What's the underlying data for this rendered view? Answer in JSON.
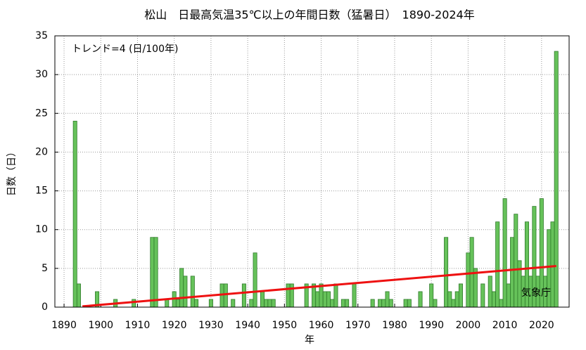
{
  "chart_data": {
    "type": "bar",
    "title": "松山　日最高気温35℃以上の年間日数（猛暑日）　1890-2024年",
    "xlabel": "年",
    "ylabel": "日数（日）",
    "annotations": [
      "トレンド=4 (日/100年)",
      "気象庁"
    ],
    "x": [
      1890,
      1891,
      1892,
      1893,
      1894,
      1895,
      1896,
      1897,
      1898,
      1899,
      1900,
      1901,
      1902,
      1903,
      1904,
      1905,
      1906,
      1907,
      1908,
      1909,
      1910,
      1911,
      1912,
      1913,
      1914,
      1915,
      1916,
      1917,
      1918,
      1919,
      1920,
      1921,
      1922,
      1923,
      1924,
      1925,
      1926,
      1927,
      1928,
      1929,
      1930,
      1931,
      1932,
      1933,
      1934,
      1935,
      1936,
      1937,
      1938,
      1939,
      1940,
      1941,
      1942,
      1943,
      1944,
      1945,
      1946,
      1947,
      1948,
      1949,
      1950,
      1951,
      1952,
      1953,
      1954,
      1955,
      1956,
      1957,
      1958,
      1959,
      1960,
      1961,
      1962,
      1963,
      1964,
      1965,
      1966,
      1967,
      1968,
      1969,
      1970,
      1971,
      1972,
      1973,
      1974,
      1975,
      1976,
      1977,
      1978,
      1979,
      1980,
      1981,
      1982,
      1983,
      1984,
      1985,
      1986,
      1987,
      1988,
      1989,
      1990,
      1991,
      1992,
      1993,
      1994,
      1995,
      1996,
      1997,
      1998,
      1999,
      2000,
      2001,
      2002,
      2003,
      2004,
      2005,
      2006,
      2007,
      2008,
      2009,
      2010,
      2011,
      2012,
      2013,
      2014,
      2015,
      2016,
      2017,
      2018,
      2019,
      2020,
      2021,
      2022,
      2023,
      2024
    ],
    "values": [
      0,
      0,
      0,
      24,
      3,
      0,
      0,
      0,
      0,
      2,
      0,
      0,
      0,
      0,
      1,
      0,
      0,
      0,
      0,
      1,
      0,
      0,
      0,
      0,
      9,
      9,
      0,
      0,
      1,
      0,
      2,
      1,
      5,
      4,
      0,
      4,
      1,
      0,
      0,
      0,
      1,
      0,
      0,
      3,
      3,
      0,
      1,
      0,
      0,
      3,
      0,
      1,
      7,
      0,
      2,
      1,
      1,
      1,
      0,
      0,
      0,
      3,
      3,
      0,
      0,
      0,
      3,
      0,
      3,
      2,
      3,
      2,
      2,
      1,
      3,
      0,
      1,
      1,
      0,
      3,
      0,
      0,
      0,
      0,
      1,
      0,
      1,
      1,
      2,
      1,
      0,
      0,
      0,
      1,
      1,
      0,
      0,
      2,
      0,
      0,
      3,
      1,
      0,
      0,
      9,
      2,
      1,
      2,
      3,
      0,
      7,
      9,
      5,
      0,
      3,
      0,
      4,
      2,
      11,
      1,
      14,
      3,
      9,
      12,
      6,
      4,
      11,
      4,
      13,
      4,
      14,
      4,
      10,
      11,
      33
    ],
    "color": "#66c25a",
    "trend": {
      "x": [
        1895,
        2024
      ],
      "values": [
        0.1,
        5.3
      ],
      "color": "#ee1111"
    },
    "xlim": [
      1887.5,
      2027.5
    ],
    "ylim": [
      0,
      35
    ],
    "xticks": [
      1890,
      1900,
      1910,
      1920,
      1930,
      1940,
      1950,
      1960,
      1970,
      1980,
      1990,
      2000,
      2010,
      2020
    ],
    "yticks": [
      0,
      5,
      10,
      15,
      20,
      25,
      30,
      35
    ],
    "grid": true
  }
}
